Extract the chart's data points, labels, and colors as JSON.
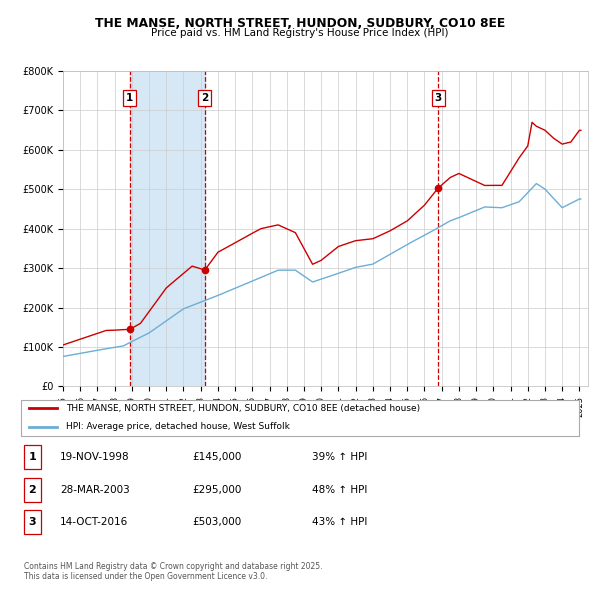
{
  "title": "THE MANSE, NORTH STREET, HUNDON, SUDBURY, CO10 8EE",
  "subtitle": "Price paid vs. HM Land Registry's House Price Index (HPI)",
  "hpi_color": "#6baed6",
  "price_color": "#cc0000",
  "vline_color": "#cc0000",
  "shade_color": "#d6e8f5",
  "ylim": [
    0,
    800000
  ],
  "yticks": [
    0,
    100000,
    200000,
    300000,
    400000,
    500000,
    600000,
    700000,
    800000
  ],
  "ytick_labels": [
    "£0",
    "£100K",
    "£200K",
    "£300K",
    "£400K",
    "£500K",
    "£600K",
    "£700K",
    "£800K"
  ],
  "sale_dates": [
    1998.88,
    2003.24,
    2016.79
  ],
  "sale_prices": [
    145000,
    295000,
    503000
  ],
  "sale_labels": [
    "1",
    "2",
    "3"
  ],
  "sale_info": [
    {
      "label": "1",
      "date": "19-NOV-1998",
      "price": "£145,000",
      "pct": "39% ↑ HPI"
    },
    {
      "label": "2",
      "date": "28-MAR-2003",
      "price": "£295,000",
      "pct": "48% ↑ HPI"
    },
    {
      "label": "3",
      "date": "14-OCT-2016",
      "price": "£503,000",
      "pct": "43% ↑ HPI"
    }
  ],
  "legend_entries": [
    "THE MANSE, NORTH STREET, HUNDON, SUDBURY, CO10 8EE (detached house)",
    "HPI: Average price, detached house, West Suffolk"
  ],
  "footer": "Contains HM Land Registry data © Crown copyright and database right 2025.\nThis data is licensed under the Open Government Licence v3.0.",
  "xlim": [
    1995,
    2025.5
  ]
}
